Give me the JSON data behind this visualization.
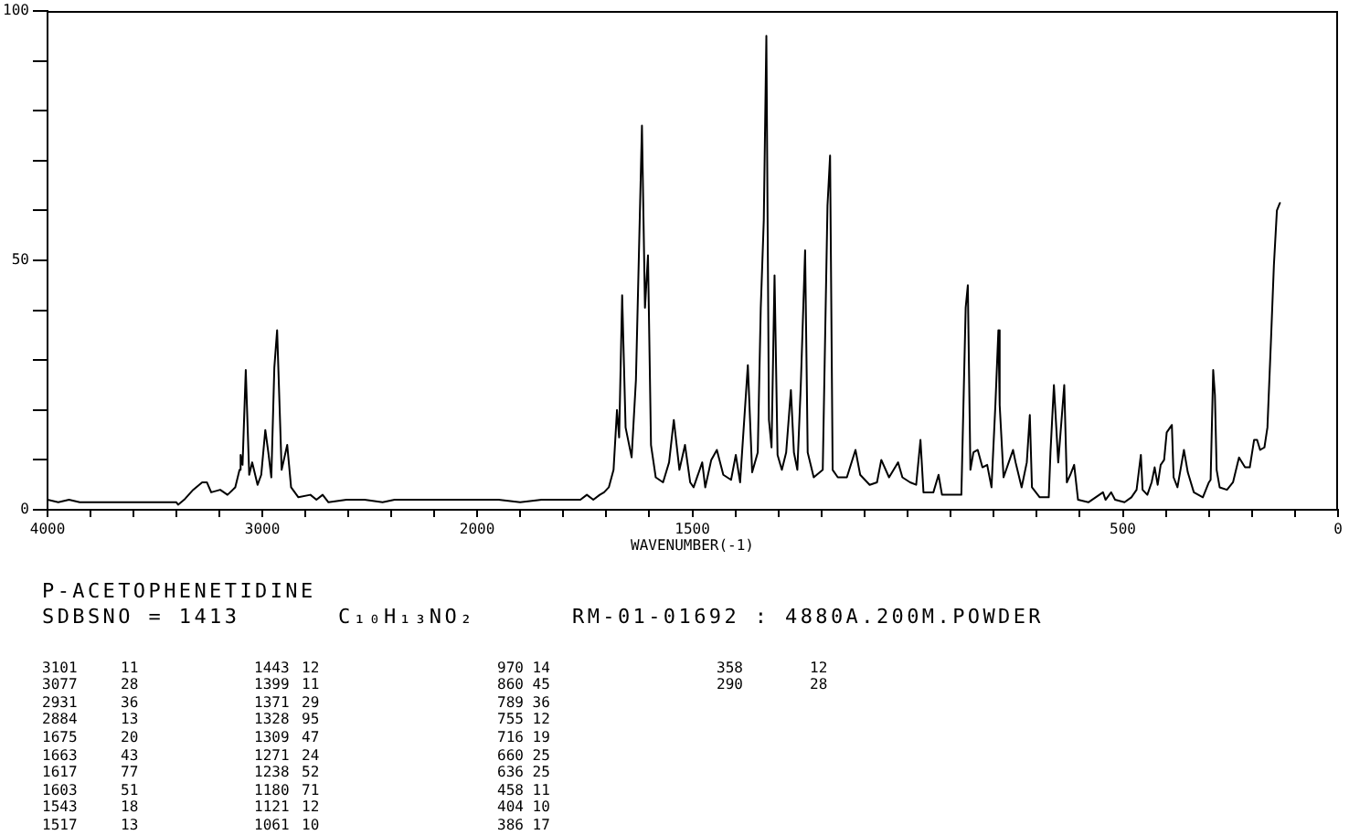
{
  "chart_data": [
    {
      "type": "line",
      "color": "#000000",
      "xlim": [
        4000,
        2000
      ],
      "xticks": [
        4000,
        {
          "value": 3800,
          "label": null
        },
        {
          "value": 3600,
          "label": null
        },
        {
          "value": 3400,
          "label": null
        },
        {
          "value": 3200,
          "label": null
        },
        3000,
        {
          "value": 2800,
          "label": null
        },
        {
          "value": 2600,
          "label": null
        },
        {
          "value": 2400,
          "label": null
        },
        {
          "value": 2200,
          "label": null
        },
        2000
      ],
      "ylim": [
        0,
        100
      ],
      "yticks": [
        0,
        {
          "value": 10,
          "label": null
        },
        {
          "value": 20,
          "label": null
        },
        {
          "value": 30,
          "label": null
        },
        {
          "value": 40,
          "label": null
        },
        50,
        {
          "value": 60,
          "label": null
        },
        {
          "value": 70,
          "label": null
        },
        {
          "value": 80,
          "label": null
        },
        {
          "value": 90,
          "label": null
        },
        100
      ],
      "x": [
        4000,
        3950,
        3900,
        3850,
        3800,
        3750,
        3700,
        3650,
        3600,
        3550,
        3500,
        3450,
        3400,
        3392,
        3364,
        3322,
        3280,
        3258,
        3238,
        3196,
        3162,
        3126,
        3106,
        3101,
        3092,
        3077,
        3061,
        3047,
        3022,
        3005,
        2986,
        2972,
        2958,
        2944,
        2931,
        2910,
        2884,
        2866,
        2832,
        2776,
        2748,
        2719,
        2692,
        2608,
        2524,
        2440,
        2384,
        2244,
        2132,
        2020,
        2000
      ],
      "values": [
        2,
        1.5,
        2,
        1.5,
        1.5,
        1.5,
        1.5,
        1.5,
        1.5,
        1.5,
        1.5,
        1.5,
        1.5,
        1,
        2,
        4,
        5.5,
        5.5,
        3.5,
        4,
        3,
        4.5,
        8,
        11,
        9,
        28,
        7,
        9.5,
        5,
        7,
        16,
        11.5,
        6.5,
        28.5,
        36,
        8,
        13,
        4.5,
        2.5,
        3,
        2,
        3,
        1.5,
        2,
        2,
        1.5,
        2,
        2,
        2,
        2,
        2
      ]
    },
    {
      "type": "line",
      "color": "#000000",
      "xlabel": "WAVENUMBER(-1)",
      "tick_labels": "x",
      "xlim": [
        2000,
        0
      ],
      "xticks": [
        {
          "value": 1900,
          "label": null
        },
        {
          "value": 1800,
          "label": null
        },
        {
          "value": 1700,
          "label": null
        },
        {
          "value": 1600,
          "label": null
        },
        1500,
        {
          "value": 1400,
          "label": null
        },
        {
          "value": 1300,
          "label": null
        },
        {
          "value": 1200,
          "label": null
        },
        {
          "value": 1100,
          "label": null
        },
        {
          "value": 1000,
          "label": null
        },
        {
          "value": 900,
          "label": null
        },
        {
          "value": 800,
          "label": null
        },
        {
          "value": 700,
          "label": null
        },
        {
          "value": 600,
          "label": null
        },
        500,
        {
          "value": 400,
          "label": null
        },
        {
          "value": 300,
          "label": null
        },
        {
          "value": 200,
          "label": null
        },
        {
          "value": 100,
          "label": null
        },
        0
      ],
      "ylim": [
        0,
        100
      ],
      "x": [
        2000,
        1950,
        1900,
        1850,
        1800,
        1760,
        1745,
        1730,
        1715,
        1705,
        1694,
        1683,
        1675,
        1670,
        1663,
        1655,
        1641,
        1631,
        1617,
        1610,
        1603,
        1596,
        1585,
        1568,
        1554,
        1543,
        1530,
        1517,
        1505,
        1497,
        1477,
        1470,
        1456,
        1443,
        1428,
        1410,
        1399,
        1389,
        1371,
        1361,
        1348,
        1341,
        1334,
        1328,
        1322,
        1316,
        1309,
        1302,
        1292,
        1282,
        1271,
        1264,
        1256,
        1248,
        1238,
        1232,
        1218,
        1197,
        1186,
        1180,
        1174,
        1162,
        1141,
        1121,
        1110,
        1088,
        1071,
        1061,
        1043,
        1022,
        1012,
        994,
        980,
        970,
        963,
        940,
        928,
        920,
        875,
        865,
        860,
        854,
        847,
        837,
        826,
        815,
        805,
        796,
        789,
        786,
        777,
        765,
        755,
        749,
        735,
        723,
        716,
        711,
        693,
        672,
        668,
        660,
        650,
        636,
        630,
        622,
        613,
        604,
        580,
        546,
        540,
        527,
        518,
        496,
        480,
        468,
        458,
        454,
        443,
        433,
        426,
        419,
        412,
        404,
        398,
        386,
        382,
        373,
        363,
        358,
        349,
        335,
        314,
        300,
        296,
        290,
        286,
        282,
        275,
        258,
        244,
        230,
        216,
        205,
        195,
        188,
        181,
        171,
        164,
        156,
        149,
        142,
        135
      ],
      "values": [
        2,
        2,
        1.5,
        2,
        2,
        2,
        3,
        2,
        3,
        3.5,
        4.5,
        8,
        20,
        14.5,
        43,
        16.5,
        10.5,
        26,
        77,
        40.5,
        51,
        13,
        6.5,
        5.5,
        9.5,
        18,
        8,
        13,
        5.5,
        4.5,
        9.5,
        4.5,
        10,
        12,
        7,
        6,
        11,
        5.5,
        29,
        7.5,
        11.5,
        40.5,
        58,
        95,
        18,
        12.5,
        47,
        11,
        8,
        11.5,
        24,
        11.5,
        8,
        25,
        52,
        11.5,
        6.5,
        8,
        61,
        71,
        8,
        6.5,
        6.5,
        12,
        7,
        5,
        5.5,
        10,
        6.5,
        9.5,
        6.5,
        5.5,
        5,
        14,
        3.5,
        3.5,
        7,
        3,
        3,
        40.5,
        45,
        8,
        11.5,
        12,
        8.5,
        9,
        4.5,
        21,
        36,
        21,
        6.5,
        9.5,
        12,
        9.5,
        4.5,
        9.5,
        19,
        4.5,
        2.5,
        2.5,
        11.5,
        25,
        9.5,
        25,
        5.5,
        7,
        9,
        2,
        1.5,
        3.5,
        2,
        3.5,
        2,
        1.5,
        2.5,
        4,
        11,
        4,
        3,
        5.5,
        8.5,
        5,
        9,
        10,
        15.5,
        17,
        6.5,
        4.5,
        9.5,
        12,
        7.5,
        3.5,
        2.5,
        5.5,
        6,
        28,
        23,
        8,
        4.5,
        4,
        5.5,
        10.5,
        8.5,
        8.5,
        14,
        14,
        12,
        12.5,
        16.5,
        33.5,
        49,
        60,
        61.5
      ]
    },
    {
      "type": "other",
      "title": "P-ACETOPHENETIDINE",
      "annotations": [
        "SDBSNO = 1413",
        "C₁₀H₁₃NO₂",
        "RM-01-01692 : 4880A.200M.POWDER"
      ]
    },
    {
      "type": "other",
      "annotations": [
        "3101 11",
        "3077 28",
        "2931 36",
        "2884 13",
        "1675 20",
        "1663 43",
        "1617 77",
        "1603 51",
        "1543 18",
        "1517 13",
        "1443 12",
        "1399 11",
        "1371 29",
        "1328 95",
        "1309 47",
        "1271 24",
        "1238 52",
        "1180 71",
        "1121 12",
        "1061 10",
        "970 14",
        "860 45",
        "789 36",
        "755 12",
        "716 19",
        "660 25",
        "636 25",
        "458 11",
        "404 10",
        "386 17",
        "358 12",
        "290 28"
      ]
    }
  ]
}
